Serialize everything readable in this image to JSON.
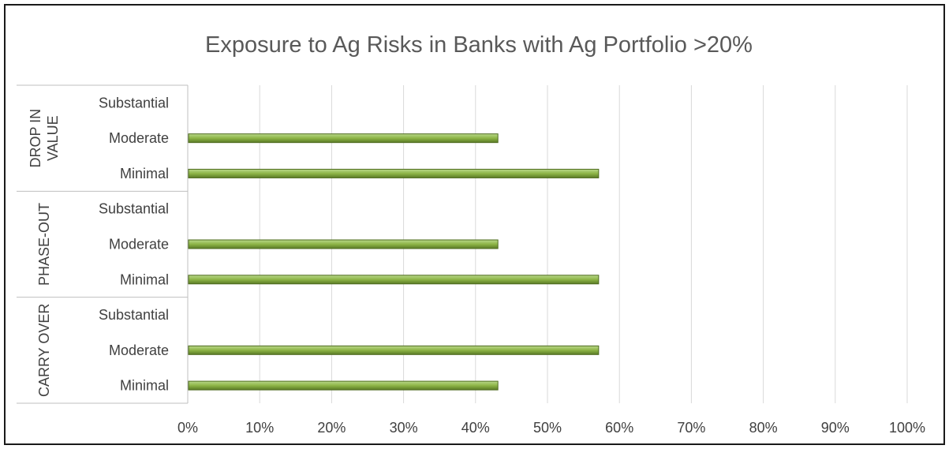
{
  "chart_data": {
    "type": "bar",
    "orientation": "horizontal",
    "title": "Exposure to Ag Risks in Banks with Ag Portfolio >20%",
    "xlabel": "",
    "ylabel": "",
    "xlim": [
      0,
      1
    ],
    "x_ticks": [
      "0%",
      "10%",
      "20%",
      "30%",
      "40%",
      "50%",
      "60%",
      "70%",
      "80%",
      "90%",
      "100%"
    ],
    "grid": "vertical",
    "legend": "none",
    "bar_color": "#8db446",
    "groups": [
      {
        "name": "DROP IN VALUE",
        "name_lines": [
          "DROP IN",
          "VALUE"
        ],
        "categories": [
          "Substantial",
          "Moderate",
          "Minimal"
        ],
        "values": [
          0,
          0.43,
          0.57
        ]
      },
      {
        "name": "PHASE-OUT",
        "name_lines": [
          "PHASE-OUT"
        ],
        "categories": [
          "Substantial",
          "Moderate",
          "Minimal"
        ],
        "values": [
          0,
          0.43,
          0.57
        ]
      },
      {
        "name": "CARRY OVER",
        "name_lines": [
          "CARRY OVER"
        ],
        "categories": [
          "Substantial",
          "Moderate",
          "Minimal"
        ],
        "values": [
          0,
          0.57,
          0.43
        ]
      }
    ]
  }
}
